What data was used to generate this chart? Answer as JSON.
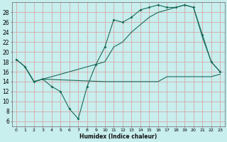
{
  "xlabel": "Humidex (Indice chaleur)",
  "background_color": "#c8eeee",
  "grid_color": "#d8a8a8",
  "line_color": "#1a6b5a",
  "ylim": [
    5,
    30
  ],
  "xlim": [
    -0.5,
    23.5
  ],
  "yticks": [
    6,
    8,
    10,
    12,
    14,
    16,
    18,
    20,
    22,
    24,
    26,
    28
  ],
  "xticks": [
    0,
    1,
    2,
    3,
    4,
    5,
    6,
    7,
    8,
    9,
    10,
    11,
    12,
    13,
    14,
    15,
    16,
    17,
    18,
    19,
    20,
    21,
    22,
    23
  ],
  "xtick_labels": [
    "0",
    "1",
    "2",
    "3",
    "4",
    "5",
    "6",
    "7",
    "8",
    "9",
    "10",
    "11",
    "12",
    "13",
    "14",
    "15",
    "16",
    "17",
    "18",
    "19",
    "20",
    "21",
    "22",
    "23"
  ],
  "line1_x": [
    0,
    1,
    2,
    3,
    4,
    5,
    6,
    7,
    8,
    9,
    10,
    11,
    12,
    13,
    14,
    15,
    16,
    17,
    18,
    19,
    20,
    21,
    22,
    23
  ],
  "line1_y": [
    18.5,
    17.0,
    14.0,
    14.5,
    13.0,
    12.0,
    8.5,
    6.5,
    13.0,
    17.5,
    21.0,
    26.5,
    26.0,
    27.0,
    28.5,
    29.0,
    29.5,
    29.0,
    29.0,
    29.5,
    29.0,
    23.5,
    18.0,
    16.0
  ],
  "line2_x": [
    1,
    2,
    3,
    10,
    11,
    12,
    13,
    14,
    15,
    16,
    17,
    18,
    19,
    20,
    21,
    22,
    23
  ],
  "line2_y": [
    17.0,
    14.0,
    14.5,
    14.0,
    14.0,
    14.0,
    14.0,
    14.0,
    14.0,
    14.0,
    15.0,
    15.0,
    15.0,
    15.0,
    15.0,
    15.0,
    15.5
  ],
  "line3_x": [
    0,
    1,
    2,
    3,
    10,
    11,
    12,
    13,
    14,
    15,
    16,
    17,
    18,
    19,
    20,
    21,
    22,
    23
  ],
  "line3_y": [
    18.5,
    17.0,
    14.0,
    14.5,
    18.0,
    21.0,
    22.0,
    24.0,
    25.5,
    27.0,
    28.0,
    28.5,
    29.0,
    29.5,
    29.0,
    23.0,
    18.0,
    16.0
  ]
}
